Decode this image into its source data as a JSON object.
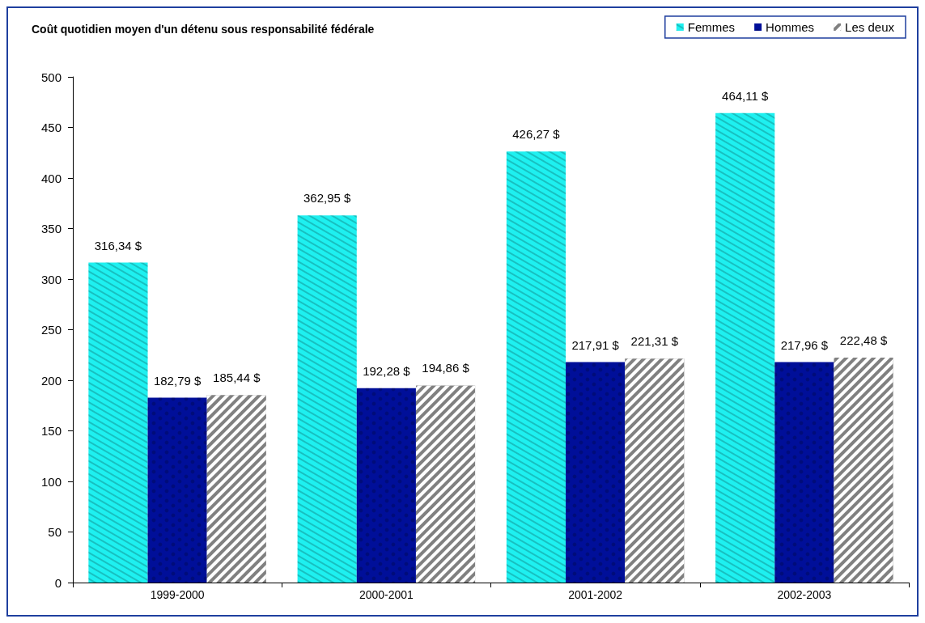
{
  "chart_data": {
    "type": "bar",
    "title": "Coût quotidien moyen d'un détenu sous responsabilité fédérale",
    "categories": [
      "1999-2000",
      "2000-2001",
      "2001-2002",
      "2002-2003"
    ],
    "series": [
      {
        "name": "Femmes",
        "color": "#1ef0f0",
        "values": [
          316.34,
          362.95,
          426.27,
          464.11
        ],
        "value_labels": [
          "316,34 $",
          "362,95 $",
          "426,27 $",
          "464,11 $"
        ]
      },
      {
        "name": "Hommes",
        "color": "#000f99",
        "values": [
          182.79,
          192.28,
          217.91,
          217.96
        ],
        "value_labels": [
          "182,79 $",
          "192,28 $",
          "217,91 $",
          "217,96 $"
        ]
      },
      {
        "name": "Les deux",
        "color": "#808080",
        "values": [
          185.44,
          194.86,
          221.31,
          222.48
        ],
        "value_labels": [
          "185,44 $",
          "194,86 $",
          "221,31 $",
          "222,48 $"
        ]
      }
    ],
    "ylim": [
      0,
      500
    ],
    "yticks": [
      0,
      50,
      100,
      150,
      200,
      250,
      300,
      350,
      400,
      450,
      500
    ],
    "grid": false,
    "legend": "top right"
  }
}
